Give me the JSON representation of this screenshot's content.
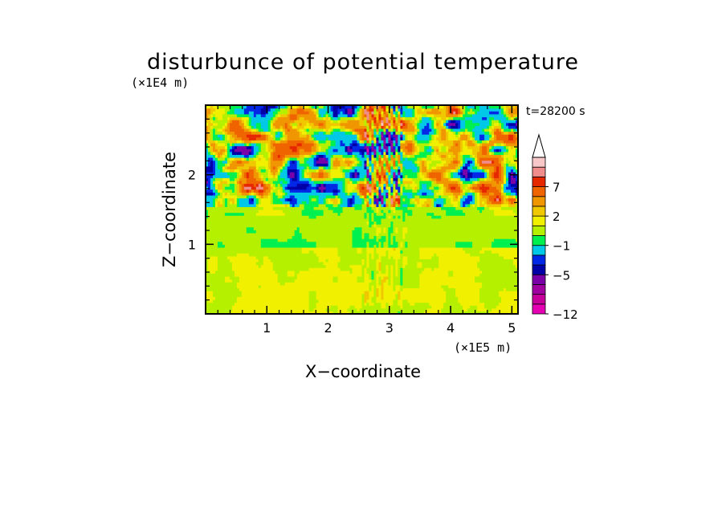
{
  "chart_data": {
    "type": "heatmap",
    "title": "disturbunce of potential temperature",
    "time_label": "t=28200 s",
    "xlabel": "X−coordinate",
    "ylabel": "Z−coordinate",
    "x_unit": "(×1E5 m)",
    "y_unit": "(×1E4 m)",
    "xlim": [
      0,
      5.1
    ],
    "ylim": [
      0,
      3.0
    ],
    "x_ticks": [
      1,
      2,
      3,
      4,
      5
    ],
    "x_tick_labels": [
      "1",
      "2",
      "3",
      "4",
      "5"
    ],
    "y_ticks": [
      1,
      2
    ],
    "y_tick_labels": [
      "1",
      "2"
    ],
    "colorbar": {
      "levels": [
        -12,
        -10,
        -8,
        -7,
        -5,
        -4,
        -3,
        -1,
        0,
        1,
        2,
        3,
        5,
        7,
        8,
        10
      ],
      "colors": [
        "#e600b4",
        "#c8009b",
        "#a000a0",
        "#7a00a8",
        "#0000a8",
        "#0028e6",
        "#00c8e6",
        "#00f050",
        "#b4f000",
        "#f0f000",
        "#f0c800",
        "#f09600",
        "#f06400",
        "#e62800",
        "#f08c8c",
        "#f8c8c8"
      ],
      "tick_values": [
        -12,
        -5,
        -1,
        2,
        7
      ],
      "tick_labels": [
        "−12",
        "−5",
        "−1",
        "2",
        "7"
      ],
      "extend_top": true
    },
    "field_description_regions": [
      {
        "z_range": [
          0,
          0.95
        ],
        "dominant_value": 1
      },
      {
        "z_range": [
          0.95,
          1.5
        ],
        "dominant_value": 0
      },
      {
        "z_range": [
          1.5,
          3.0
        ],
        "dominant_value": "mixed -5 to 7"
      }
    ]
  }
}
